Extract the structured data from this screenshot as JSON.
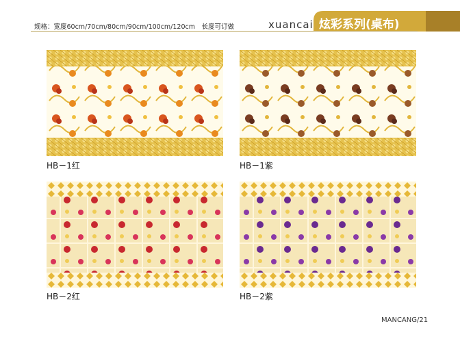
{
  "header": {
    "spec": "规格：宽度60cm/70cm/80cm/90cm/100cm/120cm　长度可订做",
    "brand": "xuancai",
    "series": "炫彩系列(桌布)"
  },
  "products": [
    {
      "code": "HB－1红"
    },
    {
      "code": "HB－1紫"
    },
    {
      "code": "HB－2红"
    },
    {
      "code": "HB－2紫"
    }
  ],
  "footer": {
    "page": "MANCANG/21"
  }
}
